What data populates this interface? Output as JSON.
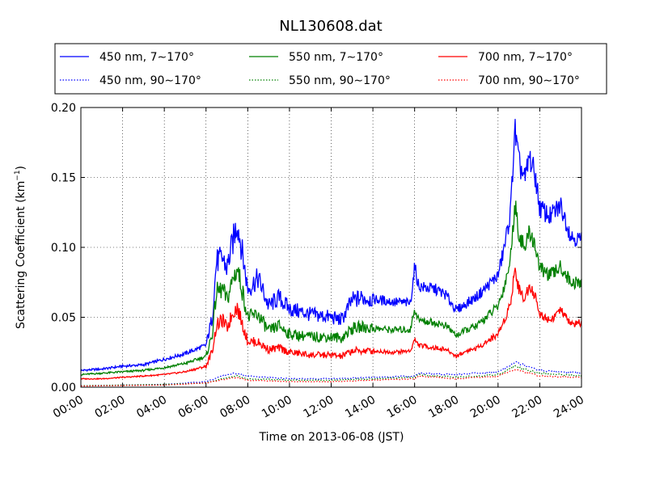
{
  "chart_data": {
    "type": "line",
    "title": "NL130608.dat",
    "xlabel": "Time on 2013-06-08 (JST)",
    "ylabel": "Scattering Coefficient (km",
    "ylabel_sup": "−1",
    "ylabel_close": ")",
    "xlim": [
      0,
      24
    ],
    "ylim": [
      0,
      0.2
    ],
    "grid": true,
    "legend_position": "top, 3 columns",
    "x_ticks": [
      0,
      2,
      4,
      6,
      8,
      10,
      12,
      14,
      16,
      18,
      20,
      22,
      24
    ],
    "x_tick_labels": [
      "00:00",
      "02:00",
      "04:00",
      "06:00",
      "08:00",
      "10:00",
      "12:00",
      "14:00",
      "16:00",
      "18:00",
      "20:00",
      "22:00",
      "24:00"
    ],
    "y_ticks": [
      0,
      0.05,
      0.1,
      0.15,
      0.2
    ],
    "y_tick_labels": [
      "0.00",
      "0.05",
      "0.10",
      "0.15",
      "0.20"
    ],
    "series": [
      {
        "name": "450 nm, 7∼170°",
        "color": "#0000ff",
        "style": "solid",
        "x": [
          0,
          1,
          2,
          3,
          4,
          5,
          6,
          6.3,
          6.5,
          6.8,
          7,
          7.3,
          7.5,
          7.7,
          8,
          8.5,
          9,
          9.5,
          10,
          11,
          12,
          12.5,
          13,
          13.5,
          14,
          15,
          15.8,
          16,
          16.2,
          17,
          17.5,
          18,
          18.5,
          19,
          20,
          20.3,
          20.6,
          20.8,
          21,
          21.3,
          21.5,
          21.8,
          22,
          22.5,
          23,
          23.5,
          24
        ],
        "y": [
          0.012,
          0.013,
          0.015,
          0.016,
          0.02,
          0.024,
          0.03,
          0.05,
          0.09,
          0.092,
          0.085,
          0.105,
          0.118,
          0.1,
          0.07,
          0.078,
          0.058,
          0.064,
          0.056,
          0.052,
          0.05,
          0.048,
          0.062,
          0.064,
          0.063,
          0.061,
          0.06,
          0.086,
          0.072,
          0.07,
          0.066,
          0.055,
          0.06,
          0.065,
          0.08,
          0.1,
          0.125,
          0.185,
          0.16,
          0.148,
          0.165,
          0.15,
          0.128,
          0.122,
          0.13,
          0.108,
          0.105
        ]
      },
      {
        "name": "550 nm, 7∼170°",
        "color": "#008000",
        "style": "solid",
        "x": [
          0,
          1,
          2,
          3,
          4,
          5,
          6,
          6.3,
          6.5,
          6.8,
          7,
          7.3,
          7.5,
          7.7,
          8,
          8.5,
          9,
          9.5,
          10,
          11,
          12,
          12.5,
          13,
          13.5,
          14,
          15,
          15.8,
          16,
          16.2,
          17,
          17.5,
          18,
          18.5,
          19,
          20,
          20.3,
          20.6,
          20.8,
          21,
          21.3,
          21.5,
          21.8,
          22,
          22.5,
          23,
          23.5,
          24
        ],
        "y": [
          0.009,
          0.01,
          0.011,
          0.012,
          0.014,
          0.017,
          0.022,
          0.038,
          0.068,
          0.07,
          0.062,
          0.078,
          0.085,
          0.072,
          0.05,
          0.052,
          0.04,
          0.044,
          0.038,
          0.036,
          0.036,
          0.035,
          0.042,
          0.043,
          0.042,
          0.041,
          0.041,
          0.056,
          0.048,
          0.046,
          0.044,
          0.037,
          0.041,
          0.044,
          0.058,
          0.072,
          0.092,
          0.132,
          0.11,
          0.098,
          0.112,
          0.1,
          0.085,
          0.08,
          0.086,
          0.075,
          0.074
        ]
      },
      {
        "name": "700 nm, 7∼170°",
        "color": "#ff0000",
        "style": "solid",
        "x": [
          0,
          1,
          2,
          3,
          4,
          5,
          6,
          6.3,
          6.5,
          6.8,
          7,
          7.3,
          7.5,
          7.7,
          8,
          8.5,
          9,
          9.5,
          10,
          11,
          12,
          12.5,
          13,
          13.5,
          14,
          15,
          15.8,
          16,
          16.2,
          17,
          17.5,
          18,
          18.5,
          19,
          20,
          20.3,
          20.6,
          20.8,
          21,
          21.3,
          21.5,
          21.8,
          22,
          22.5,
          23,
          23.5,
          24
        ],
        "y": [
          0.006,
          0.006,
          0.007,
          0.008,
          0.009,
          0.011,
          0.015,
          0.026,
          0.044,
          0.048,
          0.042,
          0.054,
          0.057,
          0.047,
          0.033,
          0.032,
          0.027,
          0.028,
          0.025,
          0.023,
          0.023,
          0.022,
          0.026,
          0.026,
          0.026,
          0.025,
          0.026,
          0.034,
          0.03,
          0.028,
          0.027,
          0.022,
          0.026,
          0.028,
          0.038,
          0.048,
          0.06,
          0.085,
          0.07,
          0.063,
          0.074,
          0.064,
          0.052,
          0.048,
          0.055,
          0.045,
          0.046
        ]
      },
      {
        "name": "450 nm, 90∼170°",
        "color": "#0000ff",
        "style": "dotted",
        "x": [
          0,
          4,
          6,
          7,
          7.5,
          8,
          10,
          12,
          14,
          16,
          16.2,
          18,
          20,
          20.8,
          21.5,
          22,
          24
        ],
        "y": [
          0.001,
          0.002,
          0.004,
          0.009,
          0.01,
          0.008,
          0.006,
          0.006,
          0.007,
          0.008,
          0.01,
          0.009,
          0.011,
          0.018,
          0.015,
          0.012,
          0.01
        ]
      },
      {
        "name": "550 nm, 90∼170°",
        "color": "#008000",
        "style": "dotted",
        "x": [
          0,
          4,
          6,
          7,
          7.5,
          8,
          10,
          12,
          14,
          16,
          16.2,
          18,
          20,
          20.8,
          21.5,
          22,
          24
        ],
        "y": [
          0.001,
          0.002,
          0.003,
          0.007,
          0.008,
          0.006,
          0.005,
          0.005,
          0.006,
          0.007,
          0.009,
          0.007,
          0.009,
          0.015,
          0.012,
          0.01,
          0.008
        ]
      },
      {
        "name": "700 nm, 90∼170°",
        "color": "#ff0000",
        "style": "dotted",
        "x": [
          0,
          4,
          6,
          7,
          7.5,
          8,
          10,
          12,
          14,
          16,
          16.2,
          18,
          20,
          20.8,
          21.5,
          22,
          24
        ],
        "y": [
          0.0008,
          0.0015,
          0.003,
          0.006,
          0.007,
          0.005,
          0.004,
          0.004,
          0.005,
          0.006,
          0.008,
          0.006,
          0.008,
          0.013,
          0.01,
          0.008,
          0.007
        ]
      }
    ]
  }
}
